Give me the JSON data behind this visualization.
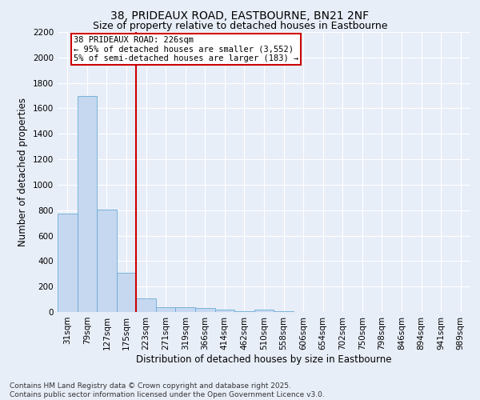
{
  "title_line1": "38, PRIDEAUX ROAD, EASTBOURNE, BN21 2NF",
  "title_line2": "Size of property relative to detached houses in Eastbourne",
  "xlabel": "Distribution of detached houses by size in Eastbourne",
  "ylabel": "Number of detached properties",
  "categories": [
    "31sqm",
    "79sqm",
    "127sqm",
    "175sqm",
    "223sqm",
    "271sqm",
    "319sqm",
    "366sqm",
    "414sqm",
    "462sqm",
    "510sqm",
    "558sqm",
    "606sqm",
    "654sqm",
    "702sqm",
    "750sqm",
    "798sqm",
    "846sqm",
    "894sqm",
    "941sqm",
    "989sqm"
  ],
  "values": [
    775,
    1700,
    805,
    305,
    110,
    40,
    35,
    30,
    20,
    5,
    20,
    5,
    0,
    0,
    0,
    0,
    0,
    0,
    0,
    0,
    0
  ],
  "bar_color": "#c5d8f0",
  "bar_edge_color": "#6aaad4",
  "vline_color": "#cc0000",
  "vline_index": 3.5,
  "annotation_text": "38 PRIDEAUX ROAD: 226sqm\n← 95% of detached houses are smaller (3,552)\n5% of semi-detached houses are larger (183) →",
  "annotation_box_color": "#ffffff",
  "annotation_box_edge_color": "#cc0000",
  "ylim": [
    0,
    2200
  ],
  "yticks": [
    0,
    200,
    400,
    600,
    800,
    1000,
    1200,
    1400,
    1600,
    1800,
    2000,
    2200
  ],
  "footnote": "Contains HM Land Registry data © Crown copyright and database right 2025.\nContains public sector information licensed under the Open Government Licence v3.0.",
  "background_color": "#e8eef8",
  "grid_color": "#ffffff",
  "title_fontsize": 10,
  "subtitle_fontsize": 9,
  "axis_label_fontsize": 8.5,
  "tick_fontsize": 7.5,
  "annotation_fontsize": 7.5,
  "footnote_fontsize": 6.5
}
